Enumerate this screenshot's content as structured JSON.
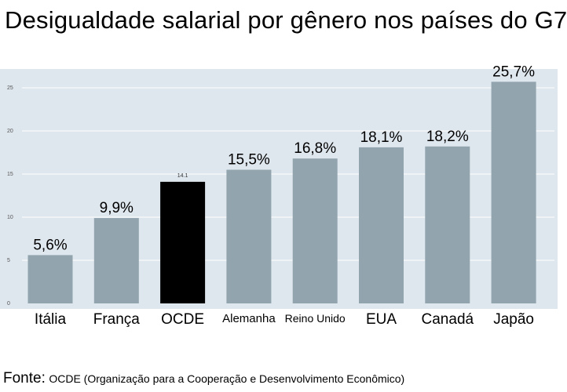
{
  "title": "Desigualdade salarial por gênero nos países do G7",
  "chart_data": {
    "type": "bar",
    "title": "Desigualdade salarial por gênero nos países do G7",
    "xlabel": "",
    "ylabel": "",
    "categories": [
      "Itália",
      "França",
      "OCDE",
      "Alemanha",
      "Reino Unido",
      "EUA",
      "Canadá",
      "Japão"
    ],
    "values": [
      5.6,
      9.9,
      14.1,
      15.5,
      16.8,
      18.1,
      18.2,
      25.7
    ],
    "value_labels": [
      "5,6%",
      "9,9%",
      "14.1",
      "15,5%",
      "16,8%",
      "18,1%",
      "18,2%",
      "25,7%"
    ],
    "yticks": [
      "0",
      "5",
      "10",
      "15",
      "20",
      "25"
    ],
    "ylim": [
      0,
      27
    ],
    "grid": true,
    "highlight_category": "OCDE",
    "colors": {
      "bar": "#92a4ae",
      "highlight": "#000000",
      "plot_background": "#dfe7ee",
      "gridline": "#ffffff"
    }
  },
  "source": {
    "label": "Fonte:",
    "text": "OCDE (Organização para a Cooperação e Desenvolvimento Econômico)"
  }
}
